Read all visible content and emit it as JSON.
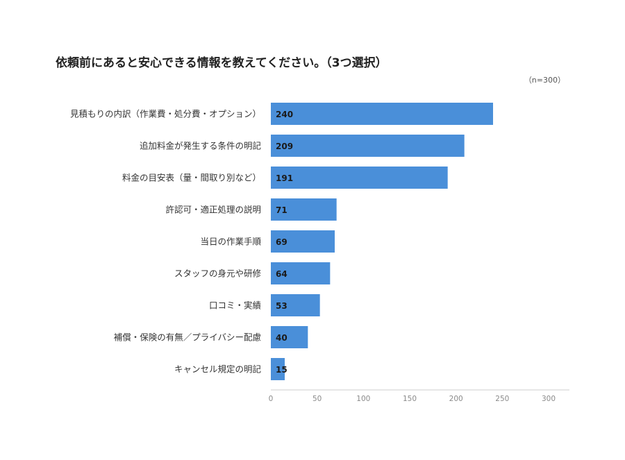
{
  "header": {
    "title": "依頼前にあると安心できる情報を教えてください。（3つ選択）",
    "sample_size": "（n=300）"
  },
  "colors": {
    "bar": "#4a8fd9",
    "axis": "#cccccc"
  },
  "chart_data": {
    "type": "bar",
    "orientation": "horizontal",
    "title": "依頼前にあると安心できる情報を教えてください。（3つ選択）",
    "categories": [
      "見積もりの内訳（作業費・処分費・オプション）",
      "追加料金が発生する条件の明記",
      "料金の目安表（量・間取り別など）",
      "許認可・適正処理の説明",
      "当日の作業手順",
      "スタッフの身元や研修",
      "口コミ・実績",
      "補償・保険の有無／プライバシー配慮",
      "キャンセル規定の明記"
    ],
    "values": [
      240,
      209,
      191,
      71,
      69,
      64,
      53,
      40,
      15
    ],
    "xlim": [
      0,
      300
    ],
    "xticks": [
      "0",
      "50",
      "100",
      "150",
      "200",
      "250",
      "300"
    ],
    "xlabel": "",
    "ylabel": "",
    "grid": false,
    "legend": "none",
    "data_labels": "inside-left"
  }
}
